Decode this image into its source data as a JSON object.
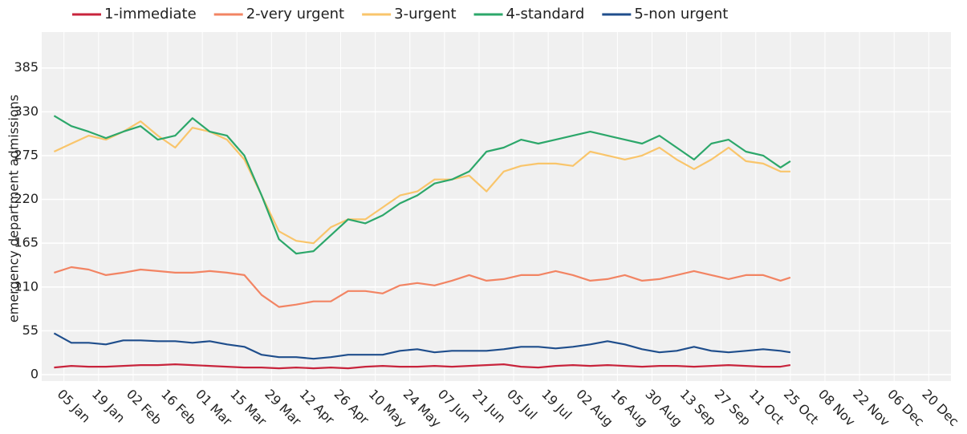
{
  "chart_data": {
    "type": "line",
    "y_label": "emergency department admissions",
    "x": [
      1,
      8,
      15,
      22,
      29,
      36,
      43,
      50,
      57,
      64,
      71,
      78,
      85,
      92,
      99,
      106,
      113,
      120,
      127,
      134,
      141,
      148,
      155,
      162,
      169,
      176,
      183,
      190,
      197,
      204,
      211,
      218,
      225,
      232,
      239,
      246,
      253,
      260,
      267,
      274,
      281,
      288,
      295,
      299
    ],
    "series": [
      {
        "name": "1-immediate",
        "color": "#c8243c",
        "values": [
          9,
          11,
          10,
          10,
          11,
          12,
          12,
          13,
          12,
          11,
          10,
          9,
          9,
          8,
          9,
          8,
          9,
          8,
          10,
          11,
          10,
          10,
          11,
          10,
          11,
          12,
          13,
          10,
          9,
          11,
          12,
          11,
          12,
          11,
          10,
          11,
          11,
          10,
          11,
          12,
          11,
          10,
          10,
          12
        ]
      },
      {
        "name": "2-very urgent",
        "color": "#f28463",
        "values": [
          128,
          135,
          132,
          125,
          128,
          132,
          130,
          128,
          128,
          130,
          128,
          125,
          100,
          85,
          88,
          92,
          92,
          105,
          105,
          102,
          112,
          115,
          112,
          118,
          125,
          118,
          120,
          125,
          125,
          130,
          125,
          118,
          120,
          125,
          118,
          120,
          125,
          130,
          125,
          120,
          125,
          125,
          118,
          122
        ]
      },
      {
        "name": "3-urgent",
        "color": "#f9c56b",
        "values": [
          280,
          290,
          300,
          295,
          305,
          318,
          300,
          285,
          310,
          305,
          295,
          270,
          225,
          180,
          168,
          165,
          185,
          195,
          195,
          210,
          225,
          230,
          245,
          245,
          250,
          230,
          255,
          262,
          265,
          265,
          262,
          280,
          275,
          270,
          275,
          285,
          270,
          258,
          270,
          285,
          268,
          265,
          255,
          255
        ]
      },
      {
        "name": "4-standard",
        "color": "#2ca76a",
        "values": [
          325,
          312,
          305,
          297,
          305,
          312,
          295,
          300,
          322,
          305,
          300,
          275,
          225,
          170,
          152,
          155,
          175,
          195,
          190,
          200,
          215,
          225,
          240,
          245,
          255,
          280,
          285,
          295,
          290,
          295,
          300,
          305,
          300,
          295,
          290,
          300,
          285,
          270,
          290,
          295,
          280,
          275,
          260,
          268
        ]
      },
      {
        "name": "5-non urgent",
        "color": "#1f4e8c",
        "values": [
          52,
          40,
          40,
          38,
          43,
          43,
          42,
          42,
          40,
          42,
          38,
          35,
          25,
          22,
          22,
          20,
          22,
          25,
          25,
          25,
          30,
          32,
          28,
          30,
          30,
          30,
          32,
          35,
          35,
          33,
          35,
          38,
          42,
          38,
          32,
          28,
          30,
          35,
          30,
          28,
          30,
          32,
          30,
          28
        ]
      }
    ],
    "xlim": [
      -4,
      364
    ],
    "xticks": [
      {
        "value": 5,
        "label": "05 Jan"
      },
      {
        "value": 19,
        "label": "19 Jan"
      },
      {
        "value": 33,
        "label": "02 Feb"
      },
      {
        "value": 47,
        "label": "16 Feb"
      },
      {
        "value": 61,
        "label": "01 Mar"
      },
      {
        "value": 75,
        "label": "15 Mar"
      },
      {
        "value": 89,
        "label": "29 Mar"
      },
      {
        "value": 103,
        "label": "12 Apr"
      },
      {
        "value": 117,
        "label": "26 Apr"
      },
      {
        "value": 131,
        "label": "10 May"
      },
      {
        "value": 145,
        "label": "24 May"
      },
      {
        "value": 159,
        "label": "07 Jun"
      },
      {
        "value": 173,
        "label": "21 Jun"
      },
      {
        "value": 187,
        "label": "05 Jul"
      },
      {
        "value": 201,
        "label": "19 Jul"
      },
      {
        "value": 215,
        "label": "02 Aug"
      },
      {
        "value": 229,
        "label": "16 Aug"
      },
      {
        "value": 243,
        "label": "30 Aug"
      },
      {
        "value": 257,
        "label": "13 Sep"
      },
      {
        "value": 271,
        "label": "27 Sep"
      },
      {
        "value": 285,
        "label": "11 Oct"
      },
      {
        "value": 299,
        "label": "25 Oct"
      },
      {
        "value": 313,
        "label": "08 Nov"
      },
      {
        "value": 327,
        "label": "22 Nov"
      },
      {
        "value": 341,
        "label": "06 Dec"
      },
      {
        "value": 355,
        "label": "20 Dec"
      }
    ],
    "ylim": [
      -8,
      430
    ],
    "yticks": [
      0,
      55,
      110,
      165,
      220,
      275,
      330,
      385
    ],
    "grid": true,
    "legend": "top"
  }
}
